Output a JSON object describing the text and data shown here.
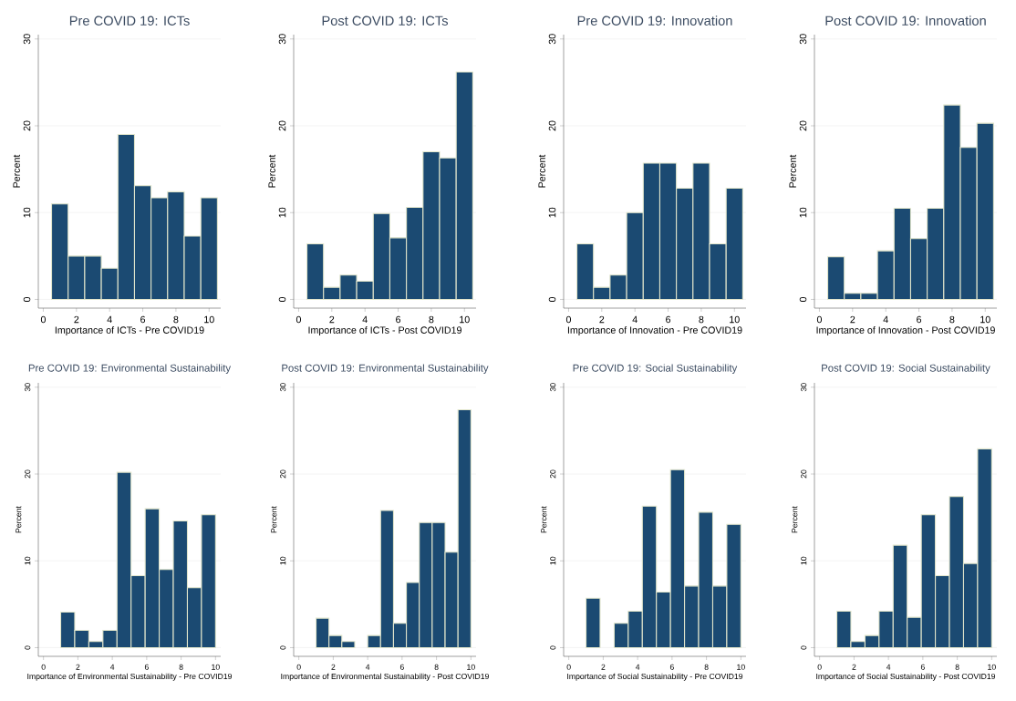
{
  "chart_data": [
    {
      "type": "histogram",
      "title": "Pre COVID 19: ICTs",
      "xlabel": "Importance of ICTs - Pre COVID19",
      "ylabel": "Percent",
      "bins": [
        0.5,
        1.5,
        2.5,
        3.5,
        4.5,
        5.5,
        6.5,
        7.5,
        8.5,
        9.5,
        10.5
      ],
      "values": [
        11,
        5,
        5,
        3.6,
        19,
        13.1,
        11.7,
        12.4,
        7.3,
        11.7
      ],
      "color": "#1b4a72",
      "xlim": [
        -0.3,
        10.7
      ],
      "ylim": [
        -1,
        30.5
      ],
      "xticks": [
        0,
        2,
        4,
        6,
        8,
        10
      ],
      "yticks": [
        0,
        10,
        20,
        30
      ],
      "grid": "y"
    },
    {
      "type": "histogram",
      "title": "Post COVID 19: ICTs",
      "xlabel": "Importance of ICTs - Post COVID19",
      "ylabel": "Percent",
      "bins": [
        0.5,
        1.5,
        2.5,
        3.5,
        4.5,
        5.5,
        6.5,
        7.5,
        8.5,
        9.5,
        10.5
      ],
      "values": [
        6.4,
        1.4,
        2.8,
        2.1,
        9.9,
        7.1,
        10.6,
        17,
        16.3,
        26.2
      ],
      "color": "#1b4a72",
      "xlim": [
        -0.3,
        10.7
      ],
      "ylim": [
        -1,
        30.5
      ],
      "xticks": [
        0,
        2,
        4,
        6,
        8,
        10
      ],
      "yticks": [
        0,
        10,
        20,
        30
      ],
      "grid": "y"
    },
    {
      "type": "histogram",
      "title": "Pre COVID 19: Innovation",
      "xlabel": "Importance of Innovation - Pre COVID19",
      "ylabel": "Percent",
      "bins": [
        0.5,
        1.5,
        2.5,
        3.5,
        4.5,
        5.5,
        6.5,
        7.5,
        8.5,
        9.5,
        10.5
      ],
      "values": [
        6.4,
        1.4,
        2.8,
        10,
        15.7,
        15.7,
        12.8,
        15.7,
        6.4,
        12.8
      ],
      "color": "#1b4a72",
      "xlim": [
        -0.3,
        10.7
      ],
      "ylim": [
        -1,
        30.5
      ],
      "xticks": [
        0,
        2,
        4,
        6,
        8,
        10
      ],
      "yticks": [
        0,
        10,
        20,
        30
      ],
      "grid": "y"
    },
    {
      "type": "histogram",
      "title": "Post COVID 19: Innovation",
      "xlabel": "Importance of Innovation - Post COVID19",
      "ylabel": "Percent",
      "bins": [
        0.5,
        1.5,
        2.5,
        3.5,
        4.5,
        5.5,
        6.5,
        7.5,
        8.5,
        9.5,
        10.5
      ],
      "values": [
        4.9,
        0.7,
        0.7,
        5.6,
        10.5,
        7.0,
        10.5,
        22.4,
        17.5,
        20.3
      ],
      "color": "#1b4a72",
      "xlim": [
        -0.3,
        10.7
      ],
      "ylim": [
        -1,
        30.5
      ],
      "xticks": [
        0,
        2,
        4,
        6,
        8,
        10
      ],
      "yticks": [
        0,
        10,
        20,
        30
      ],
      "grid": "y"
    },
    {
      "type": "histogram",
      "title": "Pre COVID 19: Environmental Sustainability",
      "xlabel": "Importance of Environmental Sustainability - Pre COVID19",
      "ylabel": "Percent",
      "bins": [
        1,
        1.818,
        2.636,
        3.455,
        4.273,
        5.091,
        5.909,
        6.727,
        7.545,
        8.364,
        9.182,
        10
      ],
      "values": [
        4.1,
        2.0,
        0.7,
        2.0,
        20.2,
        8.3,
        16.0,
        9.0,
        14.6,
        6.9,
        15.3
      ],
      "color": "#1b4a72",
      "xlim": [
        -0.3,
        10.3
      ],
      "ylim": [
        -1,
        30.5
      ],
      "xticks": [
        0,
        2,
        4,
        6,
        8,
        10
      ],
      "yticks": [
        0,
        10,
        20,
        30
      ],
      "grid": "y"
    },
    {
      "type": "histogram",
      "title": "Post COVID 19: Environmental Sustainability",
      "xlabel": "Importance of Environmental Sustainability - Post COVID19",
      "ylabel": "Percent",
      "bins": [
        1,
        1.75,
        2.5,
        3.25,
        4,
        4.75,
        5.5,
        6.25,
        7,
        7.75,
        8.5,
        9.25,
        10
      ],
      "values": [
        3.4,
        1.4,
        0.7,
        0,
        1.4,
        15.8,
        2.8,
        7.5,
        14.4,
        14.4,
        11.0,
        27.4
      ],
      "color": "#1b4a72",
      "xlim": [
        -0.3,
        10.3
      ],
      "ylim": [
        -1,
        30.5
      ],
      "xticks": [
        0,
        2,
        4,
        6,
        8,
        10
      ],
      "yticks": [
        0,
        10,
        20,
        30
      ],
      "grid": "y"
    },
    {
      "type": "histogram",
      "title": "Pre COVID 19: Social Sustainability",
      "xlabel": "Importance of Social Sustainability - Pre COVID19",
      "ylabel": "Percent",
      "bins": [
        1,
        1.818,
        2.636,
        3.455,
        4.273,
        5.091,
        5.909,
        6.727,
        7.545,
        8.364,
        9.182,
        10
      ],
      "values": [
        5.7,
        0,
        2.8,
        4.2,
        16.3,
        6.4,
        20.5,
        7.1,
        15.6,
        7.1,
        14.2
      ],
      "color": "#1b4a72",
      "xlim": [
        -0.3,
        10.3
      ],
      "ylim": [
        -1,
        30.5
      ],
      "xticks": [
        0,
        2,
        4,
        6,
        8,
        10
      ],
      "yticks": [
        0,
        10,
        20,
        30
      ],
      "grid": "y"
    },
    {
      "type": "histogram",
      "title": "Post COVID 19: Social Sustainability",
      "xlabel": "Importance of Social Sustainability - Post COVID19",
      "ylabel": "Percent",
      "bins": [
        1,
        1.818,
        2.636,
        3.455,
        4.273,
        5.091,
        5.909,
        6.727,
        7.545,
        8.364,
        9.182,
        10
      ],
      "values": [
        4.2,
        0.7,
        1.4,
        4.2,
        11.8,
        3.5,
        15.3,
        8.3,
        17.4,
        9.7,
        22.9
      ],
      "color": "#1b4a72",
      "xlim": [
        -0.3,
        10.3
      ],
      "ylim": [
        -1,
        30.5
      ],
      "xticks": [
        0,
        2,
        4,
        6,
        8,
        10
      ],
      "yticks": [
        0,
        10,
        20,
        30
      ],
      "grid": "y"
    }
  ]
}
